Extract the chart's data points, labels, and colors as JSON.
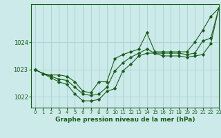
{
  "xlabel": "Graphe pression niveau de la mer (hPa)",
  "bg_color": "#cceaea",
  "grid_color": "#aad4d4",
  "line_color": "#1a5c1a",
  "ylim": [
    1021.6,
    1025.4
  ],
  "xlim": [
    -0.5,
    23
  ],
  "yticks": [
    1022,
    1023,
    1024
  ],
  "xticks": [
    0,
    1,
    2,
    3,
    4,
    5,
    6,
    7,
    8,
    9,
    10,
    11,
    12,
    13,
    14,
    15,
    16,
    17,
    18,
    19,
    20,
    21,
    22,
    23
  ],
  "series": [
    [
      1023.0,
      1022.85,
      1022.8,
      1022.8,
      1022.75,
      1022.55,
      1022.2,
      1022.15,
      1022.55,
      1022.55,
      1023.4,
      1023.55,
      1023.65,
      1023.75,
      1024.35,
      1023.65,
      1023.65,
      1023.65,
      1023.65,
      1023.65,
      1024.0,
      1024.45,
      1024.95,
      1025.25
    ],
    [
      1023.0,
      1022.85,
      1022.75,
      1022.65,
      1022.6,
      1022.35,
      1022.1,
      1022.05,
      1022.1,
      1022.35,
      1022.95,
      1023.25,
      1023.45,
      1023.6,
      1023.75,
      1023.6,
      1023.6,
      1023.6,
      1023.6,
      1023.55,
      1023.6,
      1024.05,
      1024.15,
      1025.25
    ],
    [
      1023.0,
      1022.85,
      1022.7,
      1022.55,
      1022.45,
      1022.1,
      1021.85,
      1021.85,
      1021.9,
      1022.2,
      1022.3,
      1022.95,
      1023.2,
      1023.5,
      1023.6,
      1023.6,
      1023.5,
      1023.5,
      1023.5,
      1023.45,
      1023.5,
      1023.55,
      1023.95,
      1025.25
    ]
  ]
}
